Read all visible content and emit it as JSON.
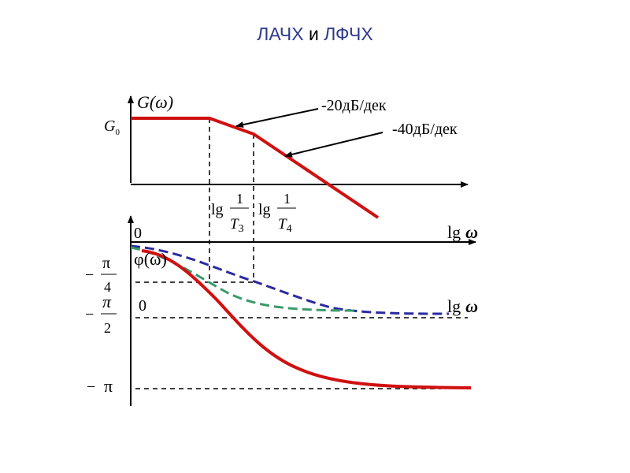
{
  "title": {
    "part1": "ЛАЧХ",
    "part2": "и",
    "part3": "ЛФЧХ"
  },
  "amplitude": {
    "axis_label": "G(ω)",
    "g0_label": "G",
    "g0_sub": "0",
    "slope1": "-20дБ/дек",
    "slope2": "-40дБ/дек"
  },
  "frequency_marks": {
    "t3": {
      "lg": "lg",
      "num": "1",
      "den": "T",
      "sub": "3"
    },
    "t4": {
      "lg": "lg",
      "num": "1",
      "den": "T",
      "sub": "4"
    }
  },
  "phase": {
    "zero_top": "0",
    "x_label_top_lg": "lg",
    "x_label_top_w": "ω",
    "axis_label": "φ(ω)",
    "zero_mid": "0",
    "x_label_mid_lg": "lg",
    "x_label_mid_w": "ω",
    "tick_pi4": {
      "minus": "−",
      "num": "π",
      "den": "4"
    },
    "tick_pi2": {
      "minus": "−",
      "num": "π",
      "den": "2"
    },
    "tick_pi": {
      "minus": "−",
      "val": "π"
    }
  },
  "colors": {
    "title": "#2d3a8c",
    "red_curve": "#d01010",
    "blue_dash": "#2a2aa0",
    "green_dash": "#3a9a6a"
  }
}
